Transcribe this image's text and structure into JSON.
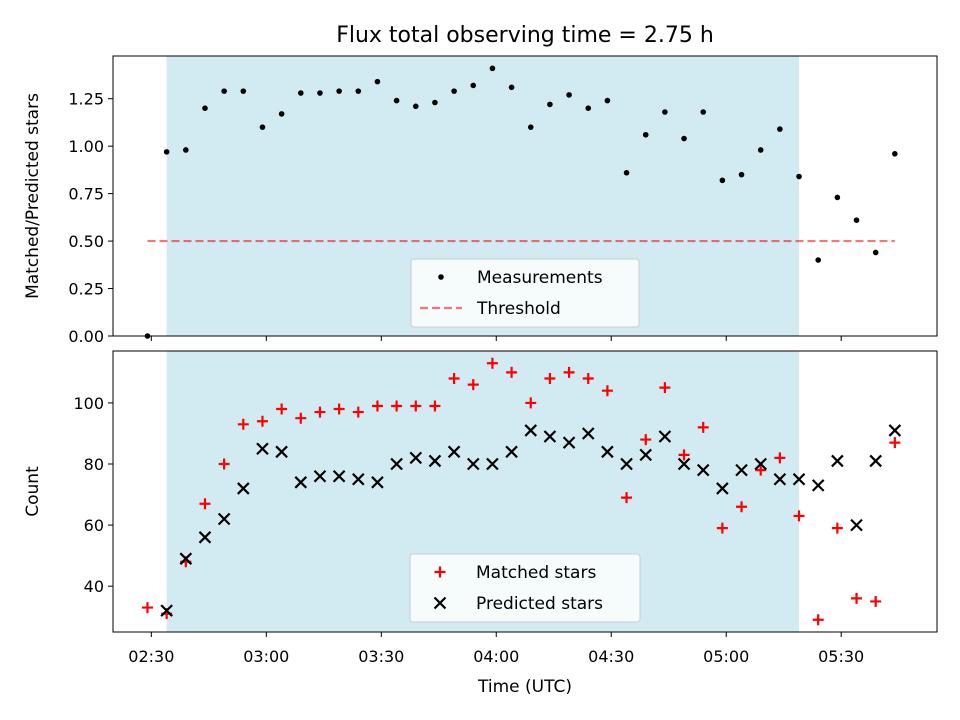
{
  "title": "Flux total observing time = 2.75 h",
  "colors": {
    "observing_band": "#add8e6",
    "measurements": "#000000",
    "threshold": "#ff0000",
    "matched": "#ff0000",
    "predicted": "#000000"
  },
  "chart_data": [
    {
      "type": "scatter",
      "ylabel": "Matched/Predicted stars",
      "ylim": [
        0,
        1.475
      ],
      "yticks": [
        0,
        0.25,
        0.5,
        0.75,
        1.0,
        1.25
      ],
      "ytick_labels": [
        "0.00",
        "0.25",
        "0.50",
        "0.75",
        "1.00",
        "1.25"
      ],
      "xlim": [
        "02:20",
        "05:55"
      ],
      "observing_window": [
        "02:34",
        "05:19"
      ],
      "legend": {
        "placement": "lower-center",
        "entries": [
          "Measurements",
          "Threshold"
        ]
      },
      "threshold": {
        "name": "Threshold",
        "value": 0.5,
        "x": [
          "02:29",
          "05:44"
        ],
        "style": "dashed"
      },
      "series": [
        {
          "name": "Measurements",
          "marker": "dot",
          "x": [
            "02:29",
            "02:34",
            "02:39",
            "02:44",
            "02:49",
            "02:54",
            "02:59",
            "03:04",
            "03:09",
            "03:14",
            "03:19",
            "03:24",
            "03:29",
            "03:34",
            "03:39",
            "03:44",
            "03:49",
            "03:54",
            "03:59",
            "04:04",
            "04:09",
            "04:14",
            "04:19",
            "04:24",
            "04:29",
            "04:34",
            "04:39",
            "04:44",
            "04:49",
            "04:54",
            "04:59",
            "05:04",
            "05:09",
            "05:14",
            "05:19",
            "05:24",
            "05:29",
            "05:34",
            "05:39",
            "05:44"
          ],
          "y": [
            0.0,
            0.97,
            0.98,
            1.2,
            1.29,
            1.29,
            1.1,
            1.17,
            1.28,
            1.28,
            1.29,
            1.29,
            1.34,
            1.24,
            1.21,
            1.23,
            1.29,
            1.32,
            1.41,
            1.31,
            1.1,
            1.22,
            1.27,
            1.2,
            1.24,
            0.86,
            1.06,
            1.18,
            1.04,
            1.18,
            0.82,
            0.85,
            0.98,
            1.09,
            0.84,
            0.4,
            0.73,
            0.61,
            0.44,
            0.96
          ]
        }
      ]
    },
    {
      "type": "scatter",
      "ylabel": "Count",
      "xlabel": "Time (UTC)",
      "ylim": [
        25,
        117
      ],
      "yticks": [
        40,
        60,
        80,
        100
      ],
      "ytick_labels": [
        "40",
        "60",
        "80",
        "100"
      ],
      "xlim": [
        "02:20",
        "05:55"
      ],
      "xticks": [
        "02:30",
        "03:00",
        "03:30",
        "04:00",
        "04:30",
        "05:00",
        "05:30"
      ],
      "xtick_labels": [
        "02:30",
        "03:00",
        "03:30",
        "04:00",
        "04:30",
        "05:00",
        "05:30"
      ],
      "observing_window": [
        "02:34",
        "05:19"
      ],
      "legend": {
        "placement": "lower-center",
        "entries": [
          "Matched stars",
          "Predicted stars"
        ]
      },
      "series": [
        {
          "name": "Matched stars",
          "marker": "plus",
          "x": [
            "02:29",
            "02:34",
            "02:39",
            "02:44",
            "02:49",
            "02:54",
            "02:59",
            "03:04",
            "03:09",
            "03:14",
            "03:19",
            "03:24",
            "03:29",
            "03:34",
            "03:39",
            "03:44",
            "03:49",
            "03:54",
            "03:59",
            "04:04",
            "04:09",
            "04:14",
            "04:19",
            "04:24",
            "04:29",
            "04:34",
            "04:39",
            "04:44",
            "04:49",
            "04:54",
            "04:59",
            "05:04",
            "05:09",
            "05:14",
            "05:19",
            "05:24",
            "05:29",
            "05:34",
            "05:39",
            "05:44"
          ],
          "y": [
            33,
            31,
            48,
            67,
            80,
            93,
            94,
            98,
            95,
            97,
            98,
            97,
            99,
            99,
            99,
            99,
            108,
            106,
            113,
            110,
            100,
            108,
            110,
            108,
            104,
            69,
            88,
            105,
            83,
            92,
            59,
            66,
            78,
            82,
            63,
            29,
            59,
            36,
            35,
            87
          ]
        },
        {
          "name": "Predicted stars",
          "marker": "x",
          "x": [
            "02:34",
            "02:39",
            "02:44",
            "02:49",
            "02:54",
            "02:59",
            "03:04",
            "03:09",
            "03:14",
            "03:19",
            "03:24",
            "03:29",
            "03:34",
            "03:39",
            "03:44",
            "03:49",
            "03:54",
            "03:59",
            "04:04",
            "04:09",
            "04:14",
            "04:19",
            "04:24",
            "04:29",
            "04:34",
            "04:39",
            "04:44",
            "04:49",
            "04:54",
            "04:59",
            "05:04",
            "05:09",
            "05:14",
            "05:19",
            "05:24",
            "05:29",
            "05:34",
            "05:39",
            "05:44"
          ],
          "y": [
            32,
            49,
            56,
            62,
            72,
            85,
            84,
            74,
            76,
            76,
            75,
            74,
            80,
            82,
            81,
            84,
            80,
            80,
            84,
            91,
            89,
            87,
            90,
            84,
            80,
            83,
            89,
            80,
            78,
            72,
            78,
            80,
            75,
            75,
            73,
            81,
            60,
            81,
            91
          ]
        }
      ]
    }
  ]
}
